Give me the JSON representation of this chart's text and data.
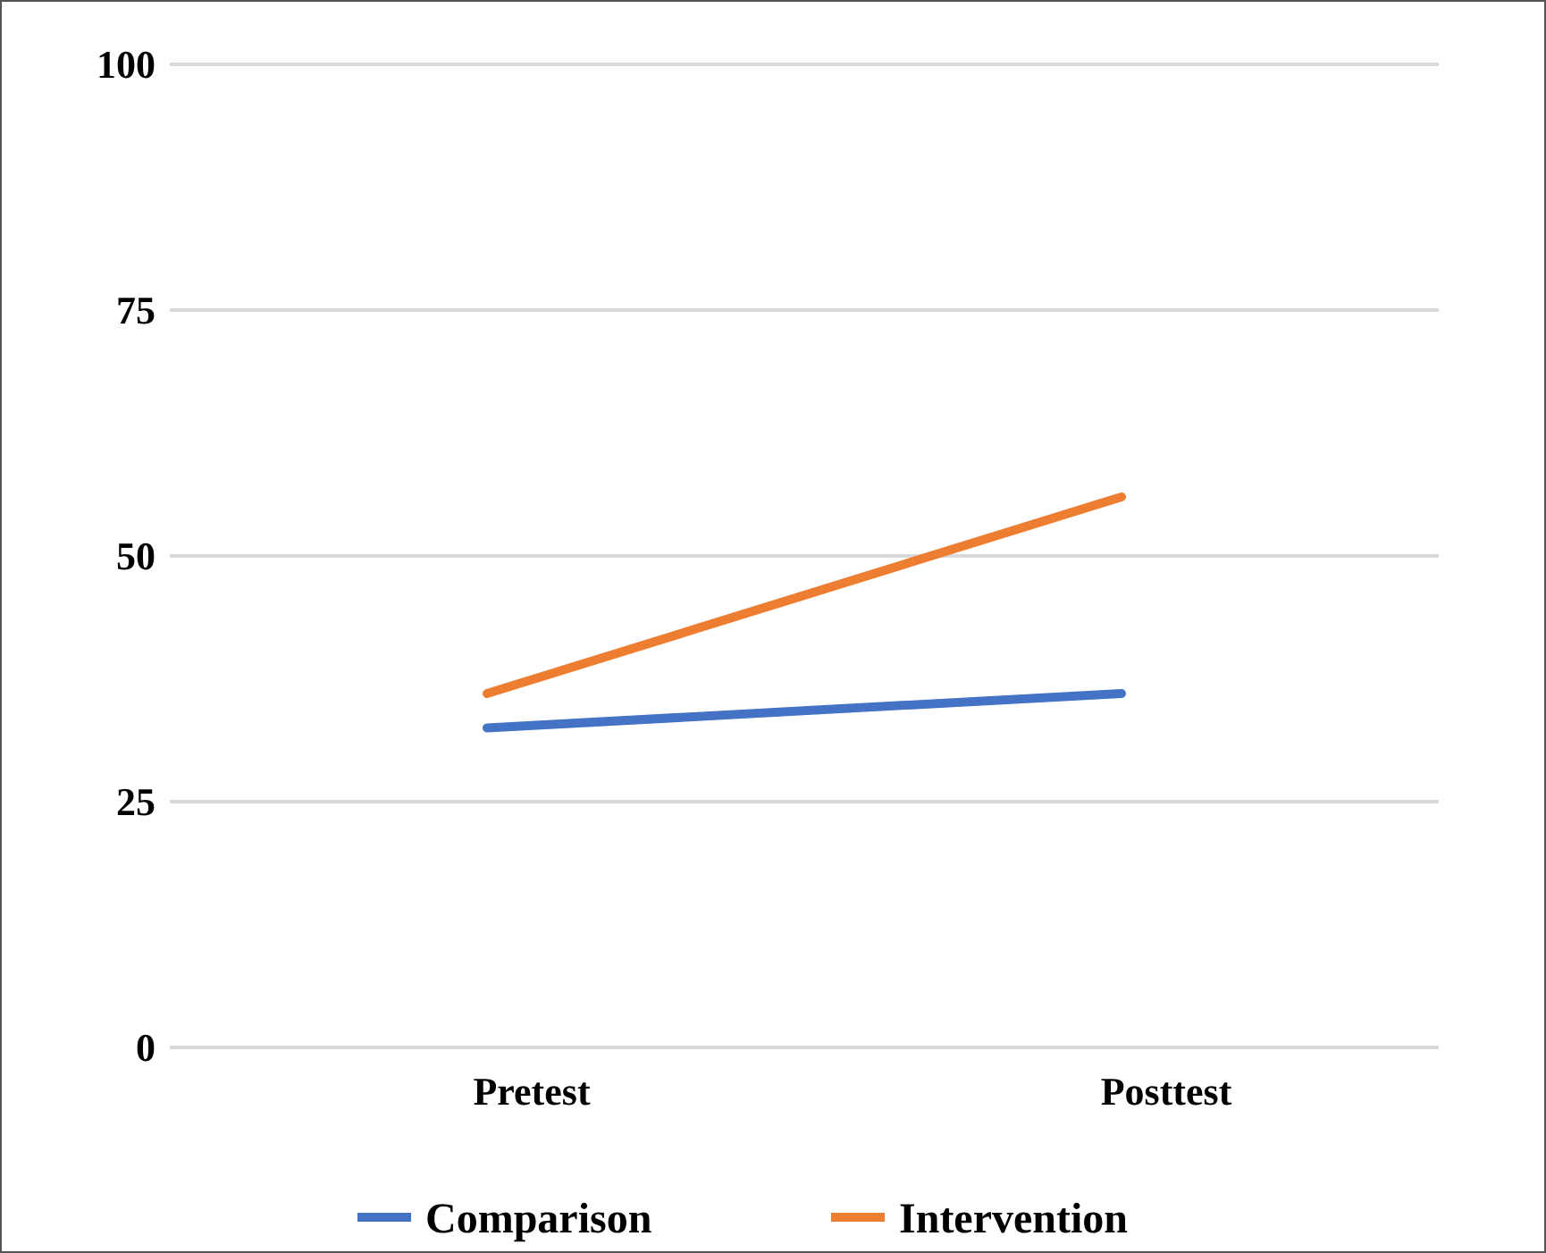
{
  "chart_data": {
    "type": "line",
    "categories": [
      "Pretest",
      "Posttest"
    ],
    "series": [
      {
        "name": "Comparison",
        "color": "#4472c4",
        "values": [
          32.5,
          36
        ]
      },
      {
        "name": "Intervention",
        "color": "#ed7d31",
        "values": [
          36,
          56
        ]
      }
    ],
    "ylim": [
      0,
      100
    ],
    "yticks": [
      0,
      25,
      50,
      75,
      100
    ],
    "grid": "y",
    "legend": "bottom",
    "marker": "none",
    "line_style": "solid"
  }
}
